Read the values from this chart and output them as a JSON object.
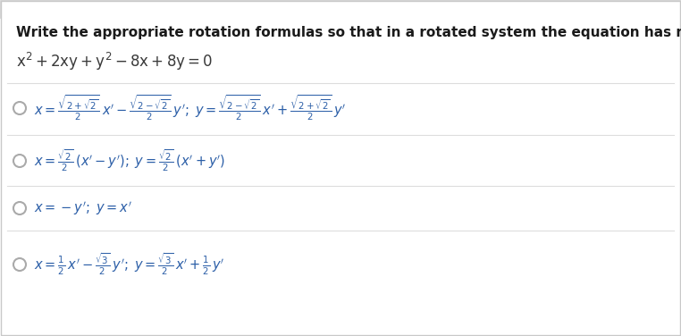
{
  "background_color": "#ffffff",
  "outer_border_color": "#c8c8c8",
  "inner_border_color": "#d8d8d8",
  "title": "Write the appropriate rotation formulas so that in a rotated system the equation has no x’y’-term.",
  "title_color": "#1a1a1a",
  "title_fontsize": 11.0,
  "equation_color": "#3a3a3a",
  "equation_fontsize": 12.0,
  "option_color": "#2b5ea7",
  "option_fontsize": 10.5,
  "radio_color": "#aaaaaa",
  "separator_color": "#dddddd",
  "top_bar_color": "#e0e0e0",
  "top_bar_height": 0.055
}
